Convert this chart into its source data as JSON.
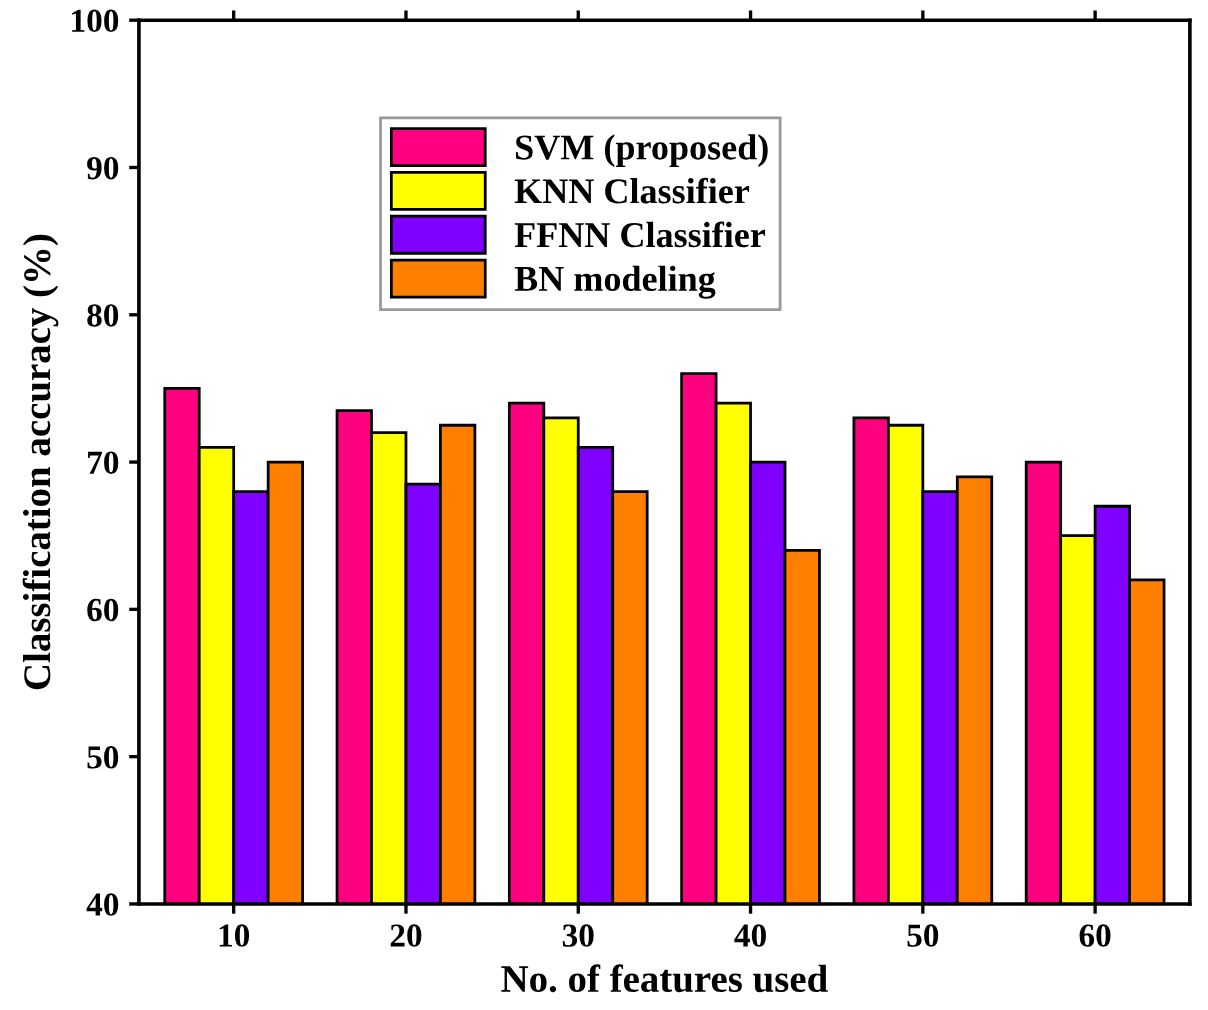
{
  "chart_data": {
    "type": "bar",
    "xlabel": "No. of features used",
    "ylabel": "Classification accuracy (%)",
    "categories": [
      "10",
      "20",
      "30",
      "40",
      "50",
      "60"
    ],
    "series": [
      {
        "name": "SVM (proposed)",
        "color": "#ff0080",
        "values": [
          75,
          73.5,
          74,
          76,
          73,
          70
        ]
      },
      {
        "name": "KNN Classifier",
        "color": "#ffff00",
        "values": [
          71,
          72,
          73,
          74,
          72.5,
          65
        ]
      },
      {
        "name": "FFNN Classifier",
        "color": "#8000ff",
        "values": [
          68,
          68.5,
          71,
          70,
          68,
          67
        ]
      },
      {
        "name": "BN modeling",
        "color": "#ff8000",
        "values": [
          70,
          72.5,
          68,
          64,
          69,
          62
        ]
      }
    ],
    "ylim": [
      40,
      100
    ],
    "yticks": [
      40,
      50,
      60,
      70,
      80,
      90,
      100
    ],
    "grid": false,
    "legend": "top"
  }
}
